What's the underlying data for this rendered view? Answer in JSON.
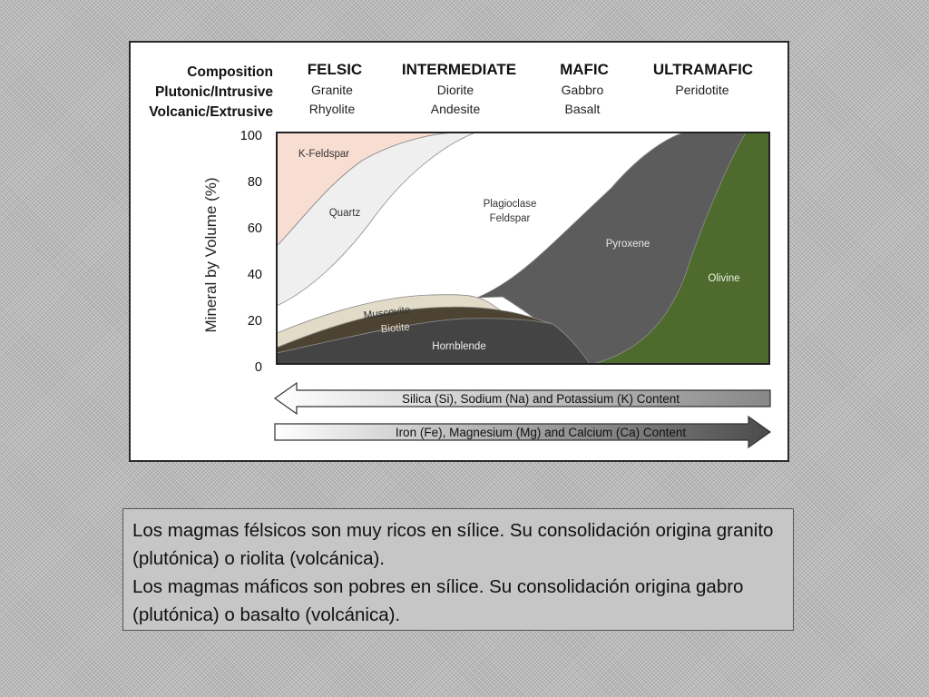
{
  "header": {
    "row_labels": [
      "Composition",
      "Plutonic/Intrusive",
      "Volcanic/Extrusive"
    ],
    "columns": [
      {
        "name": "FELSIC",
        "plutonic": "Granite",
        "volcanic": "Rhyolite"
      },
      {
        "name": "INTERMEDIATE",
        "plutonic": "Diorite",
        "volcanic": "Andesite"
      },
      {
        "name": "MAFIC",
        "plutonic": "Gabbro",
        "volcanic": "Basalt"
      },
      {
        "name": "ULTRAMAFIC",
        "plutonic": "Peridotite",
        "volcanic": ""
      }
    ]
  },
  "axis": {
    "ylabel": "Mineral by Volume (%)",
    "ticks": [
      "100",
      "80",
      "60",
      "40",
      "20",
      "0"
    ]
  },
  "minerals": {
    "k_feldspar": "K-Feldspar",
    "quartz": "Quartz",
    "plagioclase_1": "Plagioclase",
    "plagioclase_2": "Feldspar",
    "pyroxene": "Pyroxene",
    "olivine": "Olivine",
    "muscovite": "Muscovite",
    "biotite": "Biotite",
    "hornblende": "Hornblende"
  },
  "arrows": {
    "silica": "Silica (Si), Sodium (Na) and Potassium (K) Content",
    "iron": "Iron (Fe), Magnesium (Mg) and Calcium (Ca) Content"
  },
  "caption": {
    "line1": "Los magmas félsicos son muy ricos en sílice. Su consolidación origina granito (plutónica) o riolita (volcánica).",
    "line2": "Los magmas máficos son pobres en sílice. Su consolidación origina gabro (plutónica) o basalto (volcánica)."
  },
  "colors": {
    "k_feldspar": "#f8ddd3",
    "quartz": "#efefef",
    "plagioclase": "#ffffff",
    "pyroxene": "#5c5c5c",
    "olivine": "#4e6a2c",
    "muscovite": "#e1dbc8",
    "biotite": "#4d4332",
    "hornblende": "#444444"
  }
}
